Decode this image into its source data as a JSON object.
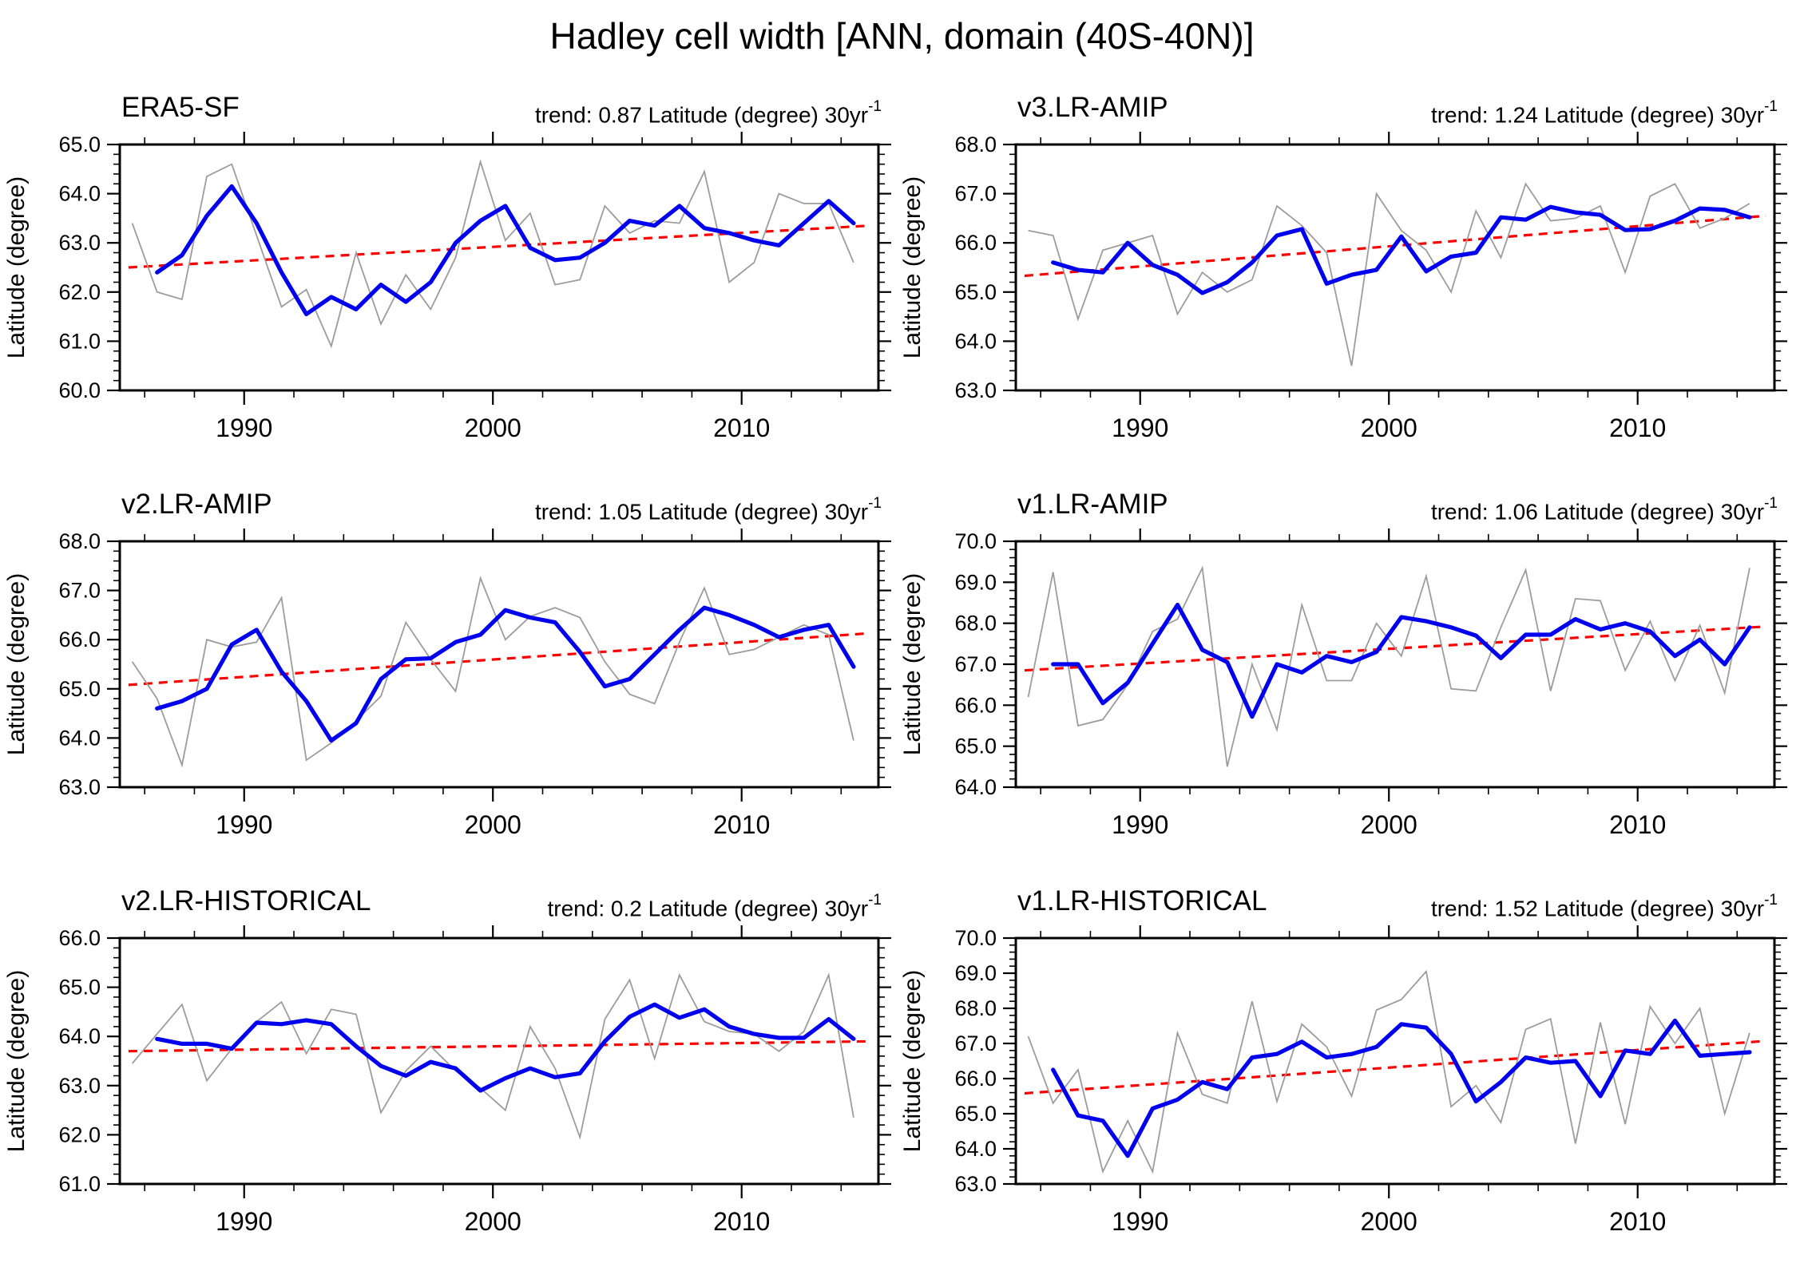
{
  "main": {
    "title": "Hadley cell width [ANN, domain (40S-40N)]"
  },
  "colors": {
    "annual": "#9c9c9c",
    "smoothed": "#0000ee",
    "trend": "#ff0000",
    "frame": "#000000"
  },
  "chart_data": [
    {
      "type": "line",
      "name": "ERA5-SF",
      "trend_label": "trend: 0.87 Latitude (degree) 30yr",
      "trend_sup": "-1",
      "trend_value": 0.87,
      "ylabel": "Latitude (degree)",
      "ylim": [
        60,
        65
      ],
      "y_tick_labels": [
        "60.0",
        "61.0",
        "62.0",
        "63.0",
        "64.0",
        "65.0"
      ],
      "x_major_ticks": [
        1990,
        2000,
        2010
      ],
      "x_range": [
        1985,
        2015.5
      ],
      "series": [
        {
          "name": "annual",
          "color": "#9c9c9c",
          "start_year": 1985,
          "values": [
            63.4,
            62.0,
            61.85,
            64.35,
            64.6,
            63.15,
            61.7,
            62.05,
            60.9,
            62.8,
            61.35,
            62.35,
            61.65,
            62.7,
            64.65,
            63.05,
            63.6,
            62.15,
            62.25,
            63.75,
            63.2,
            63.45,
            63.4,
            64.45,
            62.2,
            62.6,
            64.0,
            63.8,
            63.8,
            62.6
          ]
        },
        {
          "name": "smoothed",
          "color": "#0000ee",
          "start_year": 1986,
          "values": [
            62.4,
            62.75,
            63.55,
            64.15,
            63.4,
            62.4,
            61.55,
            61.9,
            61.65,
            62.15,
            61.8,
            62.2,
            63.0,
            63.45,
            63.75,
            62.9,
            62.65,
            62.7,
            63.0,
            63.45,
            63.35,
            63.75,
            63.3,
            63.2,
            63.05,
            62.95,
            63.4,
            63.85,
            63.4
          ]
        },
        {
          "name": "linear-trend",
          "color": "#ff0000",
          "style": "dashed",
          "start_value": 62.5,
          "end_value": 63.35
        }
      ]
    },
    {
      "type": "line",
      "name": "v3.LR-AMIP",
      "trend_label": "trend: 1.24 Latitude (degree) 30yr",
      "trend_sup": "-1",
      "trend_value": 1.24,
      "ylabel": "Latitude (degree)",
      "ylim": [
        63,
        68
      ],
      "y_tick_labels": [
        "63.0",
        "64.0",
        "65.0",
        "66.0",
        "67.0",
        "68.0"
      ],
      "x_major_ticks": [
        1990,
        2000,
        2010
      ],
      "x_range": [
        1985,
        2015.5
      ],
      "series": [
        {
          "name": "annual",
          "color": "#9c9c9c",
          "start_year": 1985,
          "values": [
            66.25,
            66.15,
            64.45,
            65.85,
            66.0,
            66.15,
            64.55,
            65.4,
            65.0,
            65.25,
            66.75,
            66.35,
            65.8,
            63.5,
            67.0,
            66.25,
            65.85,
            65.0,
            66.65,
            65.7,
            67.2,
            66.45,
            66.5,
            66.75,
            65.4,
            66.95,
            67.2,
            66.3,
            66.5,
            66.8
          ]
        },
        {
          "name": "smoothed",
          "color": "#0000ee",
          "start_year": 1986,
          "values": [
            65.6,
            65.45,
            65.4,
            66.0,
            65.55,
            65.35,
            64.98,
            65.2,
            65.6,
            66.15,
            66.28,
            65.17,
            65.35,
            65.45,
            66.13,
            65.42,
            65.72,
            65.8,
            66.52,
            66.47,
            66.73,
            66.62,
            66.57,
            66.26,
            66.28,
            66.45,
            66.7,
            66.67,
            66.52
          ]
        },
        {
          "name": "linear-trend",
          "color": "#ff0000",
          "style": "dashed",
          "start_value": 65.33,
          "end_value": 66.55
        }
      ]
    },
    {
      "type": "line",
      "name": "v2.LR-AMIP",
      "trend_label": "trend: 1.05 Latitude (degree) 30yr",
      "trend_sup": "-1",
      "trend_value": 1.05,
      "ylabel": "Latitude (degree)",
      "ylim": [
        63,
        68
      ],
      "y_tick_labels": [
        "63.0",
        "64.0",
        "65.0",
        "66.0",
        "67.0",
        "68.0"
      ],
      "x_major_ticks": [
        1990,
        2000,
        2010
      ],
      "x_range": [
        1985,
        2015.5
      ],
      "series": [
        {
          "name": "annual",
          "color": "#9c9c9c",
          "start_year": 1985,
          "values": [
            65.55,
            64.8,
            63.45,
            66.0,
            65.85,
            65.95,
            66.85,
            63.55,
            63.9,
            64.35,
            64.85,
            66.35,
            65.6,
            64.95,
            67.25,
            66.0,
            66.47,
            66.65,
            66.45,
            65.55,
            64.89,
            64.7,
            65.95,
            67.05,
            65.7,
            65.8,
            66.05,
            66.3,
            66.1,
            63.95
          ]
        },
        {
          "name": "smoothed",
          "color": "#0000ee",
          "start_year": 1986,
          "values": [
            64.6,
            64.75,
            65.0,
            65.9,
            66.2,
            65.35,
            64.75,
            63.95,
            64.3,
            65.2,
            65.6,
            65.62,
            65.95,
            66.1,
            66.6,
            66.45,
            66.35,
            65.75,
            65.05,
            65.2,
            65.7,
            66.2,
            66.65,
            66.5,
            66.3,
            66.05,
            66.2,
            66.3,
            65.45
          ]
        },
        {
          "name": "linear-trend",
          "color": "#ff0000",
          "style": "dashed",
          "start_value": 65.08,
          "end_value": 66.13
        }
      ]
    },
    {
      "type": "line",
      "name": "v1.LR-AMIP",
      "trend_label": "trend: 1.06 Latitude (degree) 30yr",
      "trend_sup": "-1",
      "trend_value": 1.06,
      "ylabel": "Latitude (degree)",
      "ylim": [
        64,
        70
      ],
      "y_tick_labels": [
        "64.0",
        "65.0",
        "66.0",
        "67.0",
        "68.0",
        "69.0",
        "70.0"
      ],
      "x_major_ticks": [
        1990,
        2000,
        2010
      ],
      "x_range": [
        1985,
        2015.5
      ],
      "series": [
        {
          "name": "annual",
          "color": "#9c9c9c",
          "start_year": 1985,
          "values": [
            66.2,
            69.25,
            65.5,
            65.65,
            66.5,
            67.8,
            68.1,
            69.35,
            64.5,
            67.0,
            65.4,
            68.45,
            66.6,
            66.6,
            68.0,
            67.2,
            69.15,
            66.4,
            66.35,
            67.9,
            69.3,
            66.35,
            68.6,
            68.55,
            66.85,
            68.05,
            66.6,
            67.95,
            66.3,
            69.35
          ]
        },
        {
          "name": "smoothed",
          "color": "#0000ee",
          "start_year": 1986,
          "values": [
            67.0,
            67.0,
            66.05,
            66.55,
            67.5,
            68.45,
            67.35,
            67.05,
            65.72,
            67.0,
            66.8,
            67.2,
            67.05,
            67.3,
            68.15,
            68.05,
            67.9,
            67.7,
            67.15,
            67.72,
            67.72,
            68.1,
            67.85,
            68.0,
            67.8,
            67.2,
            67.6,
            67.0,
            67.9
          ]
        },
        {
          "name": "linear-trend",
          "color": "#ff0000",
          "style": "dashed",
          "start_value": 66.85,
          "end_value": 67.92
        }
      ]
    },
    {
      "type": "line",
      "name": "v2.LR-HISTORICAL",
      "trend_label": "trend: 0.2 Latitude (degree) 30yr",
      "trend_sup": "-1",
      "trend_value": 0.2,
      "ylabel": "Latitude (degree)",
      "ylim": [
        61,
        66
      ],
      "y_tick_labels": [
        "61.0",
        "62.0",
        "63.0",
        "64.0",
        "65.0",
        "66.0"
      ],
      "x_major_ticks": [
        1990,
        2000,
        2010
      ],
      "x_range": [
        1985,
        2015.5
      ],
      "series": [
        {
          "name": "annual",
          "color": "#9c9c9c",
          "start_year": 1985,
          "values": [
            63.45,
            64.05,
            64.65,
            63.1,
            63.75,
            64.3,
            64.7,
            63.65,
            64.55,
            64.45,
            62.45,
            63.3,
            63.8,
            63.3,
            62.95,
            62.5,
            64.2,
            63.35,
            61.95,
            64.35,
            65.15,
            63.55,
            65.25,
            64.3,
            64.1,
            64.05,
            63.7,
            64.1,
            65.25,
            62.35
          ]
        },
        {
          "name": "smoothed",
          "color": "#0000ee",
          "start_year": 1986,
          "values": [
            63.95,
            63.85,
            63.85,
            63.75,
            64.28,
            64.25,
            64.33,
            64.25,
            63.8,
            63.4,
            63.2,
            63.48,
            63.35,
            62.9,
            63.15,
            63.35,
            63.17,
            63.25,
            63.9,
            64.4,
            64.65,
            64.38,
            64.55,
            64.2,
            64.05,
            63.97,
            63.97,
            64.35,
            63.95
          ]
        },
        {
          "name": "linear-trend",
          "color": "#ff0000",
          "style": "dashed",
          "start_value": 63.7,
          "end_value": 63.9
        }
      ]
    },
    {
      "type": "line",
      "name": "v1.LR-HISTORICAL",
      "trend_label": "trend: 1.52 Latitude (degree) 30yr",
      "trend_sup": "-1",
      "trend_value": 1.52,
      "ylabel": "Latitude (degree)",
      "ylim": [
        63,
        70
      ],
      "y_tick_labels": [
        "63.0",
        "64.0",
        "65.0",
        "66.0",
        "67.0",
        "68.0",
        "69.0",
        "70.0"
      ],
      "x_major_ticks": [
        1990,
        2000,
        2010
      ],
      "x_range": [
        1985,
        2015.5
      ],
      "series": [
        {
          "name": "annual",
          "color": "#9c9c9c",
          "start_year": 1985,
          "values": [
            67.2,
            65.3,
            66.25,
            63.35,
            64.8,
            63.35,
            67.3,
            65.55,
            65.3,
            68.2,
            65.35,
            67.55,
            66.9,
            65.5,
            67.95,
            68.25,
            69.05,
            65.2,
            65.8,
            64.75,
            67.4,
            67.7,
            64.15,
            67.6,
            64.7,
            68.05,
            67.0,
            68.0,
            65.0,
            67.3
          ]
        },
        {
          "name": "smoothed",
          "color": "#0000ee",
          "start_year": 1986,
          "values": [
            66.25,
            64.95,
            64.8,
            63.8,
            65.15,
            65.4,
            65.9,
            65.7,
            66.6,
            66.7,
            67.05,
            66.6,
            66.7,
            66.9,
            67.55,
            67.45,
            66.7,
            65.35,
            65.9,
            66.6,
            66.45,
            66.5,
            65.5,
            66.8,
            66.7,
            67.65,
            66.65,
            66.7,
            66.75
          ]
        },
        {
          "name": "linear-trend",
          "color": "#ff0000",
          "style": "dashed",
          "start_value": 65.58,
          "end_value": 67.07
        }
      ]
    }
  ]
}
